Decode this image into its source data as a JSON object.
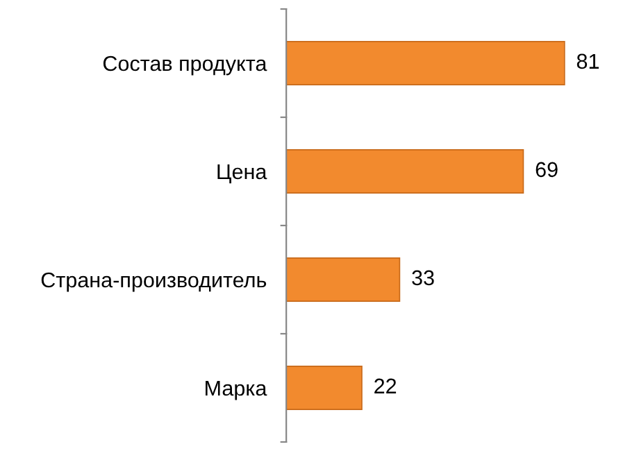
{
  "chart_data": {
    "type": "bar",
    "orientation": "horizontal",
    "categories": [
      "Состав продукта",
      "Цена",
      "Страна-производитель",
      "Марка"
    ],
    "values": [
      81,
      69,
      33,
      22
    ],
    "color": "#f28a2e",
    "tick_labels": "y",
    "data_labels": true,
    "grid": false
  }
}
